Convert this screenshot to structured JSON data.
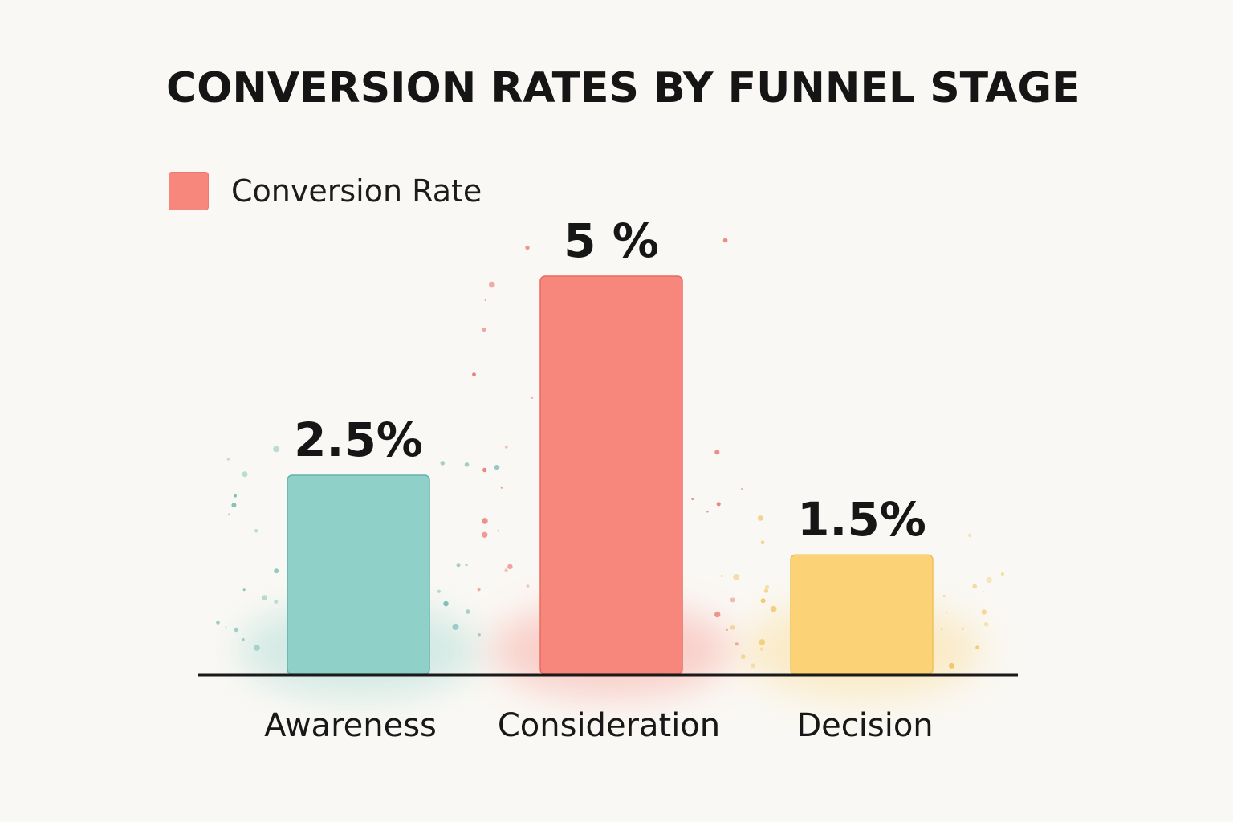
{
  "chart_data": {
    "type": "bar",
    "title": "CONVERSION RATES BY FUNNEL STAGE",
    "categories": [
      "Awareness",
      "Consideration",
      "Decision"
    ],
    "series": [
      {
        "name": "Conversion Rate",
        "values": [
          2.5,
          5,
          1.5
        ],
        "labels": [
          "2.5%",
          "5 %",
          "1.5%"
        ],
        "colors": [
          "#8fd0c9",
          "#f7867d",
          "#fbd376"
        ],
        "edge_colors": [
          "#63b2aa",
          "#e86a61",
          "#efc15a"
        ]
      }
    ],
    "legend": {
      "position": "top-left",
      "color": "#f7867d"
    },
    "grid": false,
    "xlabel": "",
    "ylabel": "",
    "ylim": [
      0,
      5.6
    ]
  }
}
